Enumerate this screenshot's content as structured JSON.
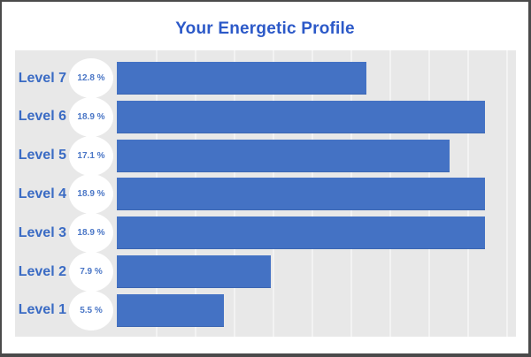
{
  "title": "Your Energetic Profile",
  "colors": {
    "title_text": "#2c59c8",
    "bar_fill": "#4472c4",
    "category_label_text": "#3a6bc4",
    "badge_text": "#4a76c6",
    "badge_bg": "#ffffff",
    "plot_bg": "#e8e8e8",
    "gridline": "#f3f3f3",
    "frame_border": "#4a4a4a",
    "page_bg": "#ffffff"
  },
  "chart_data": {
    "type": "bar",
    "orientation": "horizontal",
    "title": "Your Energetic Profile",
    "categories": [
      "Level 7",
      "Level 6",
      "Level 5",
      "Level 4",
      "Level 3",
      "Level 2",
      "Level 1"
    ],
    "values": [
      12.8,
      18.9,
      17.1,
      18.9,
      18.9,
      7.9,
      5.5
    ],
    "value_labels": [
      "12.8 %",
      "18.9 %",
      "17.1 %",
      "18.9 %",
      "18.9 %",
      "7.9 %",
      "5.5 %"
    ],
    "unit": "%",
    "xlim": [
      0,
      20.5
    ],
    "gridline_interval": 2,
    "grid": true,
    "legend": false,
    "rows": [
      {
        "label": "Level 7",
        "value": 12.8,
        "value_label": "12.8 %"
      },
      {
        "label": "Level 6",
        "value": 18.9,
        "value_label": "18.9 %"
      },
      {
        "label": "Level 5",
        "value": 17.1,
        "value_label": "17.1 %"
      },
      {
        "label": "Level 4",
        "value": 18.9,
        "value_label": "18.9 %"
      },
      {
        "label": "Level 3",
        "value": 18.9,
        "value_label": "18.9 %"
      },
      {
        "label": "Level 2",
        "value": 7.9,
        "value_label": "7.9 %"
      },
      {
        "label": "Level 1",
        "value": 5.5,
        "value_label": "5.5 %"
      }
    ]
  }
}
